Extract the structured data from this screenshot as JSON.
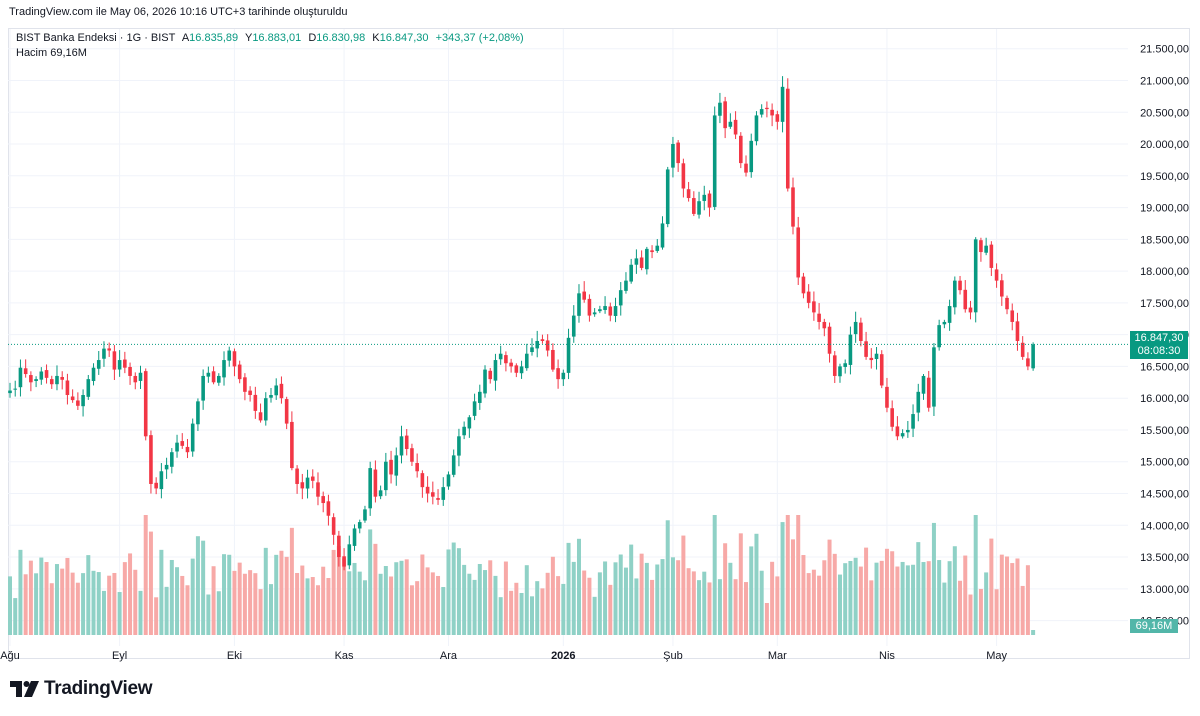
{
  "caption": "TradingView.com ile May 06, 2026 10:16 UTC+3 tarihinde oluşturuldu",
  "legend": {
    "symbol": "BIST Banka Endeksi · 1G · BIST",
    "open_label": "A",
    "open": "16.835,89",
    "high_label": "Y",
    "high": "16.883,01",
    "low_label": "D",
    "low": "16.830,98",
    "close_label": "K",
    "close": "16.847,30",
    "change": "+343,37 (+2,08%)",
    "volume_label": "Hacim",
    "volume": "69,16M"
  },
  "price_tag": {
    "price": "16.847,30",
    "countdown": "08:08:30"
  },
  "volume_tag": "69,16M",
  "brand": "TradingView",
  "colors": {
    "up": "#089981",
    "down": "#f23645",
    "vol_up": "#8fd1c6",
    "vol_down": "#f7a9a7",
    "grid": "#f0f3fa"
  },
  "chart_data": {
    "type": "candlestick",
    "y_ticks": [
      "12.500,00",
      "13.000,00",
      "13.500,00",
      "14.000,00",
      "14.500,00",
      "15.000,00",
      "15.500,00",
      "16.000,00",
      "16.500,00",
      "17.000,00",
      "17.500,00",
      "18.000,00",
      "18.500,00",
      "19.000,00",
      "19.500,00",
      "20.000,00",
      "20.500,00",
      "21.000,00",
      "21.500,00"
    ],
    "ylim": [
      12100,
      21700
    ],
    "x_ticks": [
      "Ağu",
      "Eyl",
      "Eki",
      "Kas",
      "Ara",
      "2026",
      "Şub",
      "Mar",
      "Nis",
      "May"
    ],
    "x_tick_index": [
      0,
      21,
      43,
      64,
      84,
      106,
      127,
      147,
      168,
      189
    ],
    "closes": [
      16120,
      16150,
      16480,
      16380,
      16250,
      16300,
      16420,
      16320,
      16220,
      16350,
      16290,
      16050,
      15970,
      15880,
      16050,
      16300,
      16480,
      16600,
      16780,
      16750,
      16450,
      16600,
      16480,
      16350,
      16250,
      16400,
      15400,
      14650,
      14580,
      14850,
      14950,
      15150,
      15300,
      15250,
      15150,
      15600,
      15950,
      16350,
      16400,
      16250,
      16350,
      16600,
      16750,
      16500,
      16300,
      16100,
      16050,
      15800,
      15650,
      16000,
      16050,
      16200,
      16000,
      15600,
      14900,
      14650,
      14580,
      14750,
      14700,
      14450,
      14350,
      14150,
      13850,
      13500,
      13350,
      13700,
      13950,
      14050,
      14250,
      14900,
      14450,
      14550,
      15000,
      14800,
      15100,
      15400,
      15200,
      15000,
      14850,
      14600,
      14500,
      14450,
      14400,
      14600,
      14800,
      15100,
      15400,
      15550,
      15700,
      15950,
      16100,
      16450,
      16300,
      16600,
      16700,
      16550,
      16500,
      16400,
      16500,
      16700,
      16800,
      16900,
      16900,
      16750,
      16450,
      16300,
      16400,
      16950,
      17300,
      17650,
      17550,
      17300,
      17350,
      17400,
      17450,
      17300,
      17450,
      17700,
      17850,
      18100,
      18200,
      18050,
      18350,
      18300,
      18400,
      18750,
      19600,
      20000,
      19700,
      19300,
      19150,
      18900,
      19100,
      19200,
      19000,
      20450,
      20650,
      20250,
      20350,
      20150,
      19700,
      19550,
      20050,
      20450,
      20550,
      20550,
      20450,
      20350,
      20900,
      19300,
      18700,
      17900,
      17650,
      17500,
      17350,
      17200,
      17100,
      16700,
      16350,
      16500,
      16550,
      17000,
      17200,
      16900,
      16650,
      16600,
      16700,
      16200,
      15850,
      15550,
      15400,
      15450,
      15500,
      15750,
      16100,
      16350,
      15850,
      16800,
      17150,
      17200,
      17450,
      17850,
      17700,
      17400,
      17350,
      18500,
      18300,
      18400,
      18050,
      17850,
      17600,
      17400,
      17200,
      16900,
      16650,
      16500,
      16847
    ],
    "volume_unit": "M",
    "last_volume": 69.16
  }
}
